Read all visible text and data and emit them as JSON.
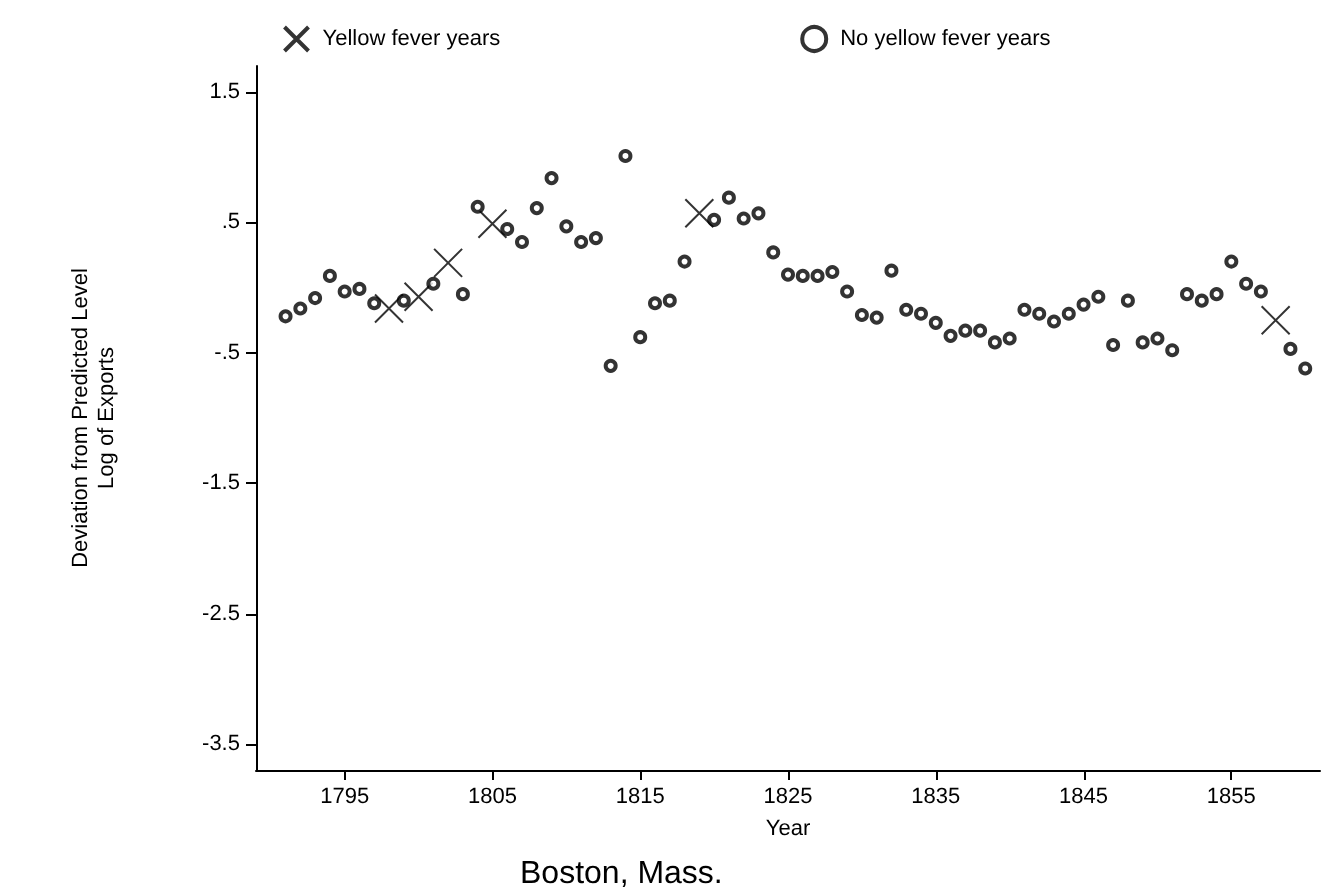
{
  "chart_data": {
    "type": "scatter",
    "xlabel": "Year",
    "ylabel": "Deviation from Predicted Level\nLog of Exports",
    "annotations": [
      "Boston, Mass."
    ],
    "xlim": [
      1789,
      1861
    ],
    "xticks": [
      1795,
      1805,
      1815,
      1825,
      1835,
      1845,
      1855
    ],
    "ylim": [
      -3.7,
      1.7
    ],
    "yticks": [
      1.5,
      {
        "value": 0.5,
        "label": ".5"
      },
      {
        "value": -0.5,
        "label": "-.5"
      },
      -1.5,
      -2.5,
      -3.5
    ],
    "grid": false,
    "legend": "top",
    "series": [
      {
        "name": "Yellow fever years",
        "color": "#000000",
        "marker": "cross",
        "x": [
          1798,
          1800,
          1802,
          1805,
          1819,
          1858
        ],
        "values": [
          -0.16,
          -0.07,
          0.19,
          0.49,
          0.57,
          -0.25
        ]
      },
      {
        "name": "No yellow fever years",
        "color": "#000000",
        "marker": "circle",
        "x": [
          1791,
          1792,
          1793,
          1794,
          1795,
          1796,
          1797,
          1799,
          1801,
          1803,
          1804,
          1806,
          1807,
          1808,
          1809,
          1810,
          1811,
          1812,
          1813,
          1814,
          1815,
          1816,
          1817,
          1818,
          1820,
          1821,
          1822,
          1823,
          1824,
          1825,
          1826,
          1827,
          1828,
          1829,
          1830,
          1831,
          1832,
          1833,
          1834,
          1835,
          1836,
          1837,
          1838,
          1839,
          1840,
          1841,
          1842,
          1843,
          1844,
          1845,
          1846,
          1847,
          1848,
          1849,
          1850,
          1851,
          1852,
          1853,
          1854,
          1855,
          1856,
          1857,
          1859,
          1860
        ],
        "values": [
          -0.22,
          -0.16,
          -0.08,
          0.09,
          -0.03,
          -0.01,
          -0.12,
          -0.1,
          0.03,
          -0.05,
          0.62,
          0.45,
          0.35,
          0.61,
          0.84,
          0.47,
          0.35,
          0.38,
          -0.6,
          1.01,
          -0.38,
          -0.12,
          -0.1,
          0.2,
          0.52,
          0.69,
          0.53,
          0.57,
          0.27,
          0.1,
          0.09,
          0.09,
          0.12,
          -0.03,
          -0.21,
          -0.23,
          0.13,
          -0.17,
          -0.2,
          -0.27,
          -0.37,
          -0.33,
          -0.33,
          -0.42,
          -0.39,
          -0.17,
          -0.2,
          -0.26,
          -0.2,
          -0.13,
          -0.07,
          -0.44,
          -0.1,
          -0.42,
          -0.39,
          -0.48,
          -0.05,
          -0.1,
          -0.05,
          0.2,
          0.03,
          -0.03,
          -0.47,
          -0.62
        ]
      }
    ]
  }
}
